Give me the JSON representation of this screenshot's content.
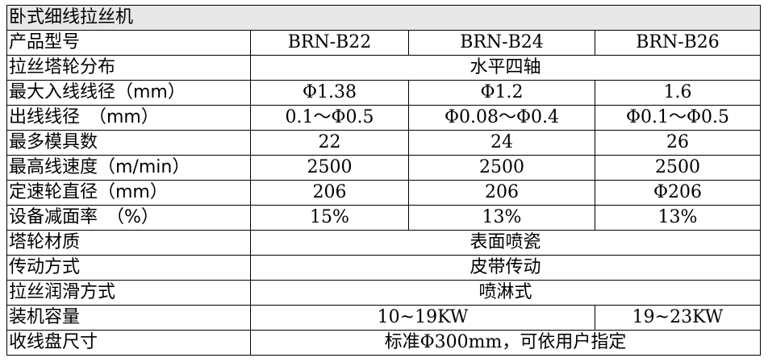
{
  "table": {
    "title": "卧式细线拉丝机",
    "rows": [
      {
        "label": "产品型号",
        "cells": [
          "BRN-B22",
          "BRN-B24",
          "BRN-B26"
        ]
      },
      {
        "label": "拉丝塔轮分布",
        "cells": [
          "水平四轴"
        ]
      },
      {
        "label": "最大入线线径（mm）",
        "cells": [
          "Φ1.38",
          "Φ1.2",
          "1.6"
        ]
      },
      {
        "label": "出线线径　（mm）",
        "cells": [
          "0.1～Φ0.5",
          "Φ0.08～Φ0.4",
          "Φ0.1～Φ0.5"
        ]
      },
      {
        "label": "最多模具数",
        "cells": [
          "22",
          "24",
          "26"
        ]
      },
      {
        "label": "最高线速度（m/min）",
        "cells": [
          "2500",
          "2500",
          "2500"
        ]
      },
      {
        "label": "定速轮直径（mm）",
        "cells": [
          "206",
          "206",
          "Φ206"
        ]
      },
      {
        "label": "设备减面率　（%）",
        "cells": [
          "15%",
          "13%",
          "13%"
        ]
      },
      {
        "label": "塔轮材质",
        "cells": [
          "表面喷瓷"
        ]
      },
      {
        "label": "传动方式",
        "cells": [
          "皮带传动"
        ]
      },
      {
        "label": "拉丝润滑方式",
        "cells": [
          "喷淋式"
        ]
      },
      {
        "label": "装机容量",
        "cells": [
          "10~19KW",
          "19~23KW"
        ]
      },
      {
        "label": "收线盘尺寸",
        "cells": [
          "标准Φ300mm，可依用户指定"
        ]
      }
    ]
  }
}
